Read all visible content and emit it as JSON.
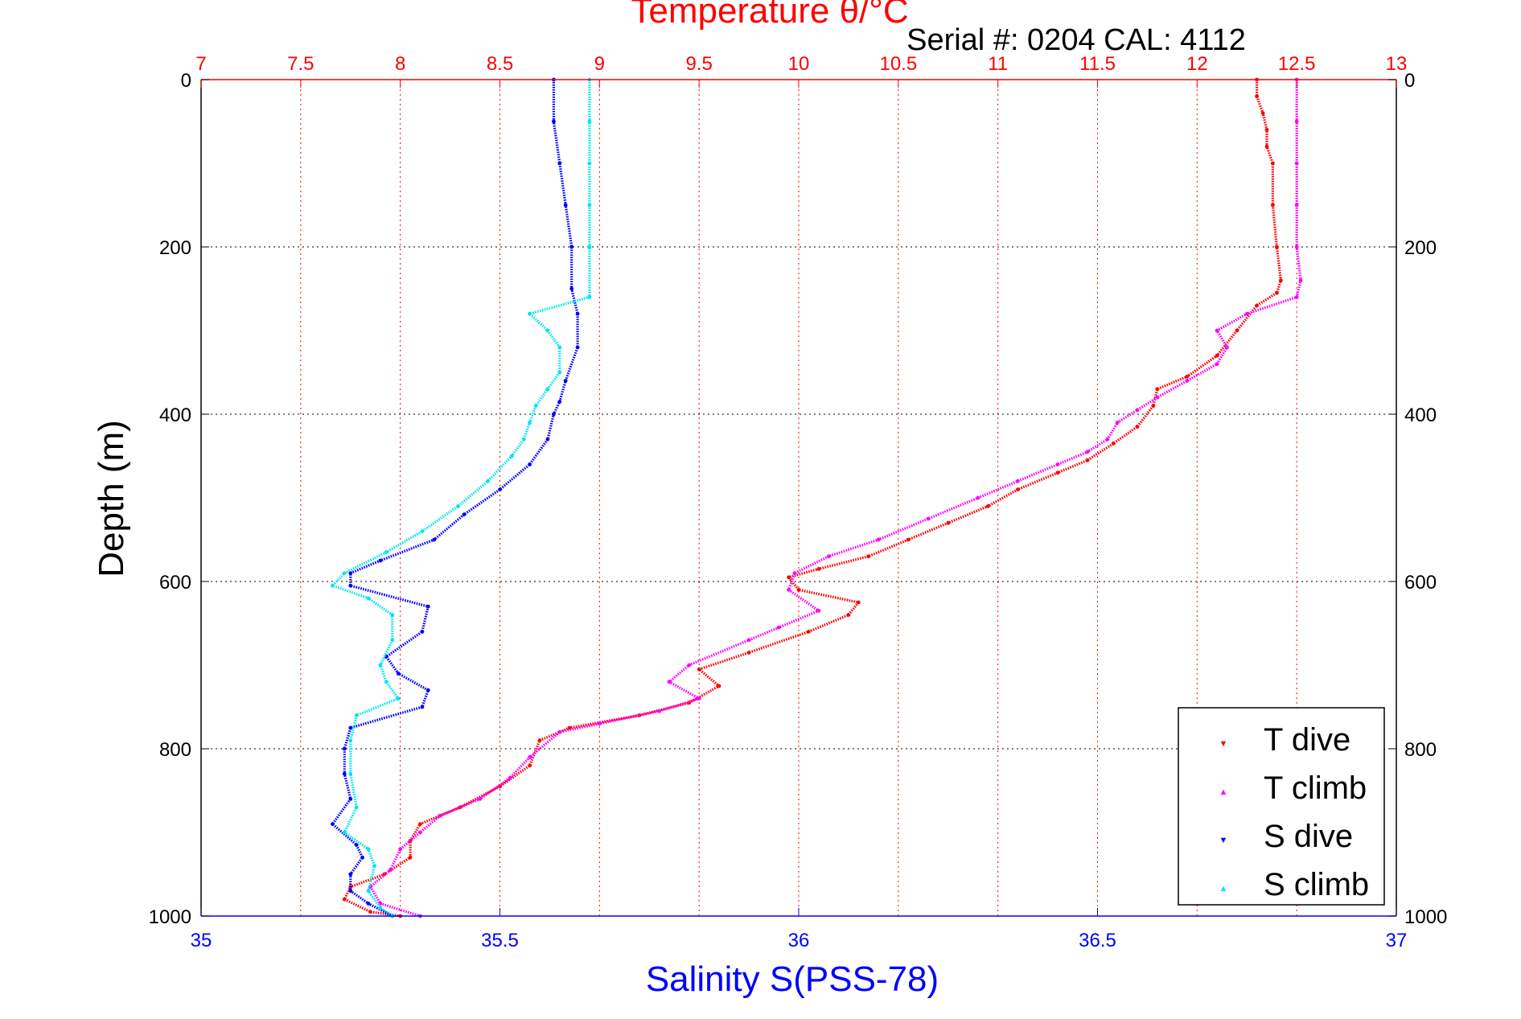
{
  "chart_data": {
    "type": "scatter",
    "title": "Temperature θ/°C",
    "subtitle": "Serial #: 0204  CAL: 4112",
    "ylabel": "Depth (m)",
    "xlabel": "Salinity S(PSS-78)",
    "ylim": [
      0,
      1000
    ],
    "y_reversed": true,
    "y_ticks": [
      0,
      200,
      400,
      600,
      800,
      1000
    ],
    "temperature_axis": {
      "position": "top",
      "range": [
        7,
        13
      ],
      "ticks": [
        "7",
        "7.5",
        "8",
        "8.5",
        "9",
        "9.5",
        "10",
        "10.5",
        "11",
        "11.5",
        "12",
        "12.5",
        "13"
      ],
      "grid": true,
      "color": "#ff0000"
    },
    "salinity_axis": {
      "position": "bottom",
      "range": [
        35,
        37
      ],
      "ticks": [
        "35",
        "35.5",
        "36",
        "36.5",
        "37"
      ],
      "color": "#0000ff"
    },
    "depth_grid": true,
    "legend_position": "bottom-right",
    "series": [
      {
        "name": "T dive",
        "axis": "temperature",
        "color": "#ff0000",
        "marker": "▼",
        "points": [
          [
            12.3,
            0
          ],
          [
            12.3,
            20
          ],
          [
            12.33,
            40
          ],
          [
            12.35,
            60
          ],
          [
            12.35,
            80
          ],
          [
            12.38,
            100
          ],
          [
            12.38,
            150
          ],
          [
            12.4,
            200
          ],
          [
            12.42,
            240
          ],
          [
            12.4,
            255
          ],
          [
            12.3,
            270
          ],
          [
            12.2,
            300
          ],
          [
            12.1,
            330
          ],
          [
            11.95,
            355
          ],
          [
            11.8,
            370
          ],
          [
            11.78,
            390
          ],
          [
            11.7,
            415
          ],
          [
            11.58,
            435
          ],
          [
            11.45,
            455
          ],
          [
            11.3,
            470
          ],
          [
            11.1,
            490
          ],
          [
            10.95,
            510
          ],
          [
            10.75,
            530
          ],
          [
            10.55,
            550
          ],
          [
            10.35,
            570
          ],
          [
            10.1,
            585
          ],
          [
            9.95,
            595
          ],
          [
            10.0,
            610
          ],
          [
            10.3,
            625
          ],
          [
            10.25,
            640
          ],
          [
            10.05,
            660
          ],
          [
            9.75,
            685
          ],
          [
            9.5,
            705
          ],
          [
            9.6,
            725
          ],
          [
            9.45,
            745
          ],
          [
            9.2,
            760
          ],
          [
            8.85,
            775
          ],
          [
            8.7,
            790
          ],
          [
            8.65,
            820
          ],
          [
            8.5,
            845
          ],
          [
            8.3,
            870
          ],
          [
            8.1,
            890
          ],
          [
            8.05,
            910
          ],
          [
            8.05,
            930
          ],
          [
            7.92,
            950
          ],
          [
            7.75,
            965
          ],
          [
            7.72,
            980
          ],
          [
            7.85,
            995
          ],
          [
            8.0,
            1000
          ]
        ]
      },
      {
        "name": "T climb",
        "axis": "temperature",
        "color": "#ff00ff",
        "marker": "▲",
        "points": [
          [
            12.5,
            0
          ],
          [
            12.5,
            50
          ],
          [
            12.5,
            100
          ],
          [
            12.5,
            150
          ],
          [
            12.5,
            200
          ],
          [
            12.52,
            240
          ],
          [
            12.5,
            260
          ],
          [
            12.25,
            280
          ],
          [
            12.1,
            300
          ],
          [
            12.15,
            320
          ],
          [
            12.1,
            340
          ],
          [
            11.95,
            360
          ],
          [
            11.8,
            380
          ],
          [
            11.7,
            395
          ],
          [
            11.6,
            410
          ],
          [
            11.55,
            430
          ],
          [
            11.45,
            445
          ],
          [
            11.3,
            460
          ],
          [
            11.1,
            480
          ],
          [
            10.9,
            500
          ],
          [
            10.65,
            525
          ],
          [
            10.4,
            550
          ],
          [
            10.15,
            570
          ],
          [
            9.98,
            590
          ],
          [
            9.95,
            610
          ],
          [
            10.1,
            635
          ],
          [
            9.9,
            655
          ],
          [
            9.75,
            670
          ],
          [
            9.45,
            700
          ],
          [
            9.35,
            720
          ],
          [
            9.5,
            740
          ],
          [
            9.3,
            755
          ],
          [
            9.0,
            770
          ],
          [
            8.8,
            780
          ],
          [
            8.65,
            810
          ],
          [
            8.55,
            835
          ],
          [
            8.4,
            860
          ],
          [
            8.2,
            880
          ],
          [
            8.1,
            900
          ],
          [
            8.0,
            920
          ],
          [
            7.95,
            945
          ],
          [
            7.85,
            965
          ],
          [
            7.9,
            985
          ],
          [
            8.1,
            1000
          ]
        ]
      },
      {
        "name": "S dive",
        "axis": "salinity",
        "color": "#0000ff",
        "marker": "▼",
        "points": [
          [
            35.59,
            0
          ],
          [
            35.59,
            50
          ],
          [
            35.6,
            100
          ],
          [
            35.61,
            150
          ],
          [
            35.62,
            200
          ],
          [
            35.62,
            250
          ],
          [
            35.63,
            280
          ],
          [
            35.63,
            320
          ],
          [
            35.61,
            360
          ],
          [
            35.6,
            385
          ],
          [
            35.59,
            400
          ],
          [
            35.58,
            430
          ],
          [
            35.55,
            460
          ],
          [
            35.5,
            490
          ],
          [
            35.44,
            520
          ],
          [
            35.39,
            550
          ],
          [
            35.3,
            575
          ],
          [
            35.25,
            590
          ],
          [
            35.25,
            605
          ],
          [
            35.38,
            630
          ],
          [
            35.37,
            660
          ],
          [
            35.31,
            690
          ],
          [
            35.33,
            710
          ],
          [
            35.38,
            730
          ],
          [
            35.37,
            750
          ],
          [
            35.25,
            775
          ],
          [
            35.24,
            800
          ],
          [
            35.24,
            830
          ],
          [
            35.25,
            860
          ],
          [
            35.22,
            890
          ],
          [
            35.26,
            915
          ],
          [
            35.27,
            930
          ],
          [
            35.25,
            950
          ],
          [
            35.25,
            970
          ],
          [
            35.28,
            985
          ],
          [
            35.32,
            1000
          ]
        ]
      },
      {
        "name": "S climb",
        "axis": "salinity",
        "color": "#00e5ee",
        "marker": "▲",
        "points": [
          [
            35.65,
            0
          ],
          [
            35.65,
            50
          ],
          [
            35.65,
            100
          ],
          [
            35.65,
            150
          ],
          [
            35.65,
            200
          ],
          [
            35.65,
            260
          ],
          [
            35.55,
            280
          ],
          [
            35.58,
            300
          ],
          [
            35.6,
            320
          ],
          [
            35.6,
            350
          ],
          [
            35.58,
            370
          ],
          [
            35.56,
            390
          ],
          [
            35.55,
            410
          ],
          [
            35.54,
            430
          ],
          [
            35.52,
            450
          ],
          [
            35.48,
            480
          ],
          [
            35.43,
            510
          ],
          [
            35.37,
            540
          ],
          [
            35.31,
            565
          ],
          [
            35.24,
            590
          ],
          [
            35.22,
            605
          ],
          [
            35.28,
            620
          ],
          [
            35.32,
            640
          ],
          [
            35.32,
            670
          ],
          [
            35.3,
            700
          ],
          [
            35.31,
            720
          ],
          [
            35.33,
            740
          ],
          [
            35.26,
            760
          ],
          [
            35.25,
            790
          ],
          [
            35.25,
            830
          ],
          [
            35.26,
            870
          ],
          [
            35.24,
            900
          ],
          [
            35.28,
            920
          ],
          [
            35.29,
            940
          ],
          [
            35.28,
            970
          ],
          [
            35.3,
            990
          ],
          [
            35.32,
            1000
          ]
        ]
      }
    ]
  }
}
